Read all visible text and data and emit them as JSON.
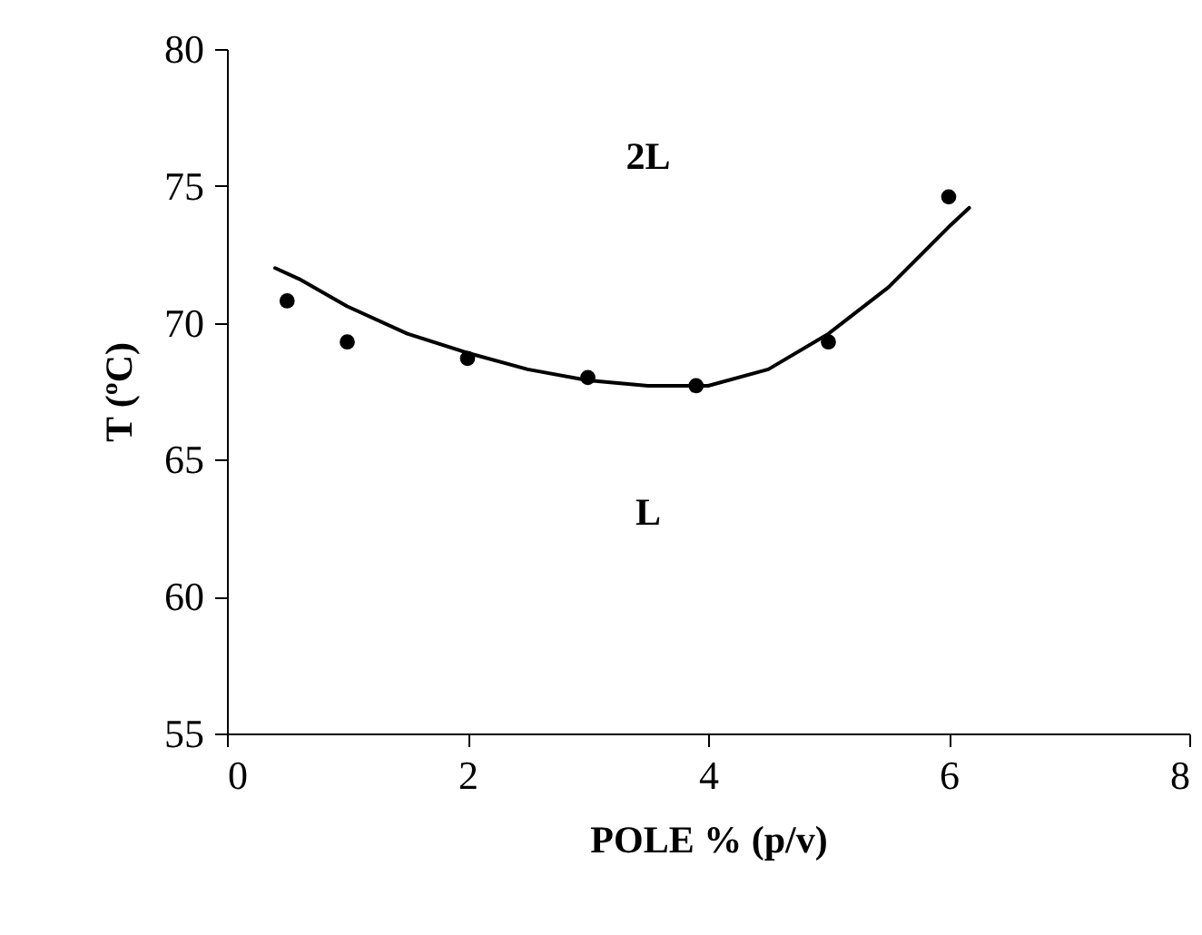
{
  "chart_data": {
    "type": "scatter",
    "xlabel": "POLE % (p/v)",
    "ylabel": "T (ºC)",
    "xlim": [
      0,
      8
    ],
    "xticks": [
      0,
      2,
      4,
      6,
      8
    ],
    "ylim": [
      55,
      80
    ],
    "yticks": [
      55,
      60,
      65,
      70,
      75,
      80
    ],
    "series": [
      {
        "marker": "circle",
        "color": "#000000",
        "x": [
          0.5,
          1,
          2,
          3,
          3.9,
          5,
          6
        ],
        "values": [
          70.8,
          69.3,
          68.7,
          68.0,
          67.7,
          69.3,
          74.6
        ]
      },
      {
        "type": "line",
        "marker": "none",
        "line_style": "solid",
        "color": "#000000",
        "x": [
          0.4,
          0.6,
          1,
          1.5,
          2,
          2.5,
          3,
          3.5,
          4,
          4.5,
          5,
          5.5,
          6,
          6.17
        ],
        "values": [
          72.0,
          71.6,
          70.6,
          69.6,
          68.9,
          68.3,
          67.9,
          67.7,
          67.7,
          68.3,
          69.6,
          71.3,
          73.5,
          74.2
        ]
      }
    ],
    "annotations": [
      "2L",
      "L"
    ]
  }
}
